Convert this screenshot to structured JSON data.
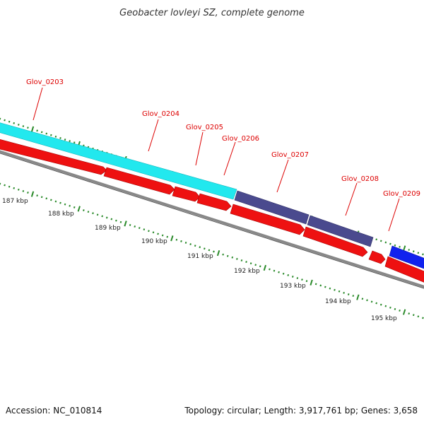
{
  "title": "Geobacter lovleyi SZ, complete genome",
  "footer": {
    "accession": "Accession: NC_010814",
    "summary": "Topology: circular; Length: 3,917,761 bp; Genes: 3,658"
  },
  "colors": {
    "label": "#dd0000",
    "tick": "#2a8a2a",
    "backbone": "#888888",
    "cyan_feature": "#22e8ee",
    "purple_feature": "#4a4a8e",
    "blue_feature": "#1122ee",
    "cds": "#ee1111"
  },
  "genes": [
    {
      "label": "Glov_0203"
    },
    {
      "label": "Glov_0204"
    },
    {
      "label": "Glov_0205"
    },
    {
      "label": "Glov_0206"
    },
    {
      "label": "Glov_0207"
    },
    {
      "label": "Glov_0208"
    },
    {
      "label": "Glov_0209"
    }
  ],
  "kbp_ticks": [
    {
      "label": "187 kbp"
    },
    {
      "label": "188 kbp"
    },
    {
      "label": "189 kbp"
    },
    {
      "label": "190 kbp"
    },
    {
      "label": "191 kbp"
    },
    {
      "label": "192 kbp"
    },
    {
      "label": "193 kbp"
    },
    {
      "label": "194 kbp"
    },
    {
      "label": "195 kbp"
    }
  ]
}
